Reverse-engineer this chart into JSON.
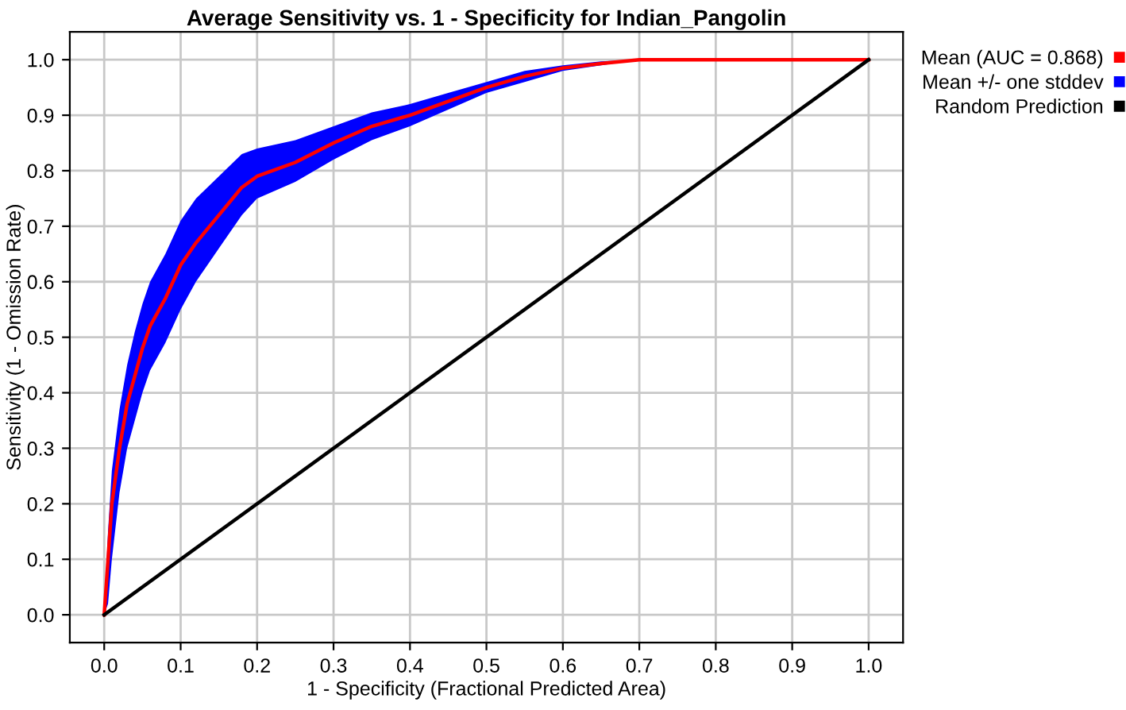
{
  "chart_data": {
    "type": "line",
    "title": "Average Sensitivity vs. 1 - Specificity for Indian_Pangolin",
    "xlabel": "1 - Specificity (Fractional Predicted Area)",
    "ylabel": "Sensitivity (1 - Omission Rate)",
    "xlim": [
      -0.045,
      1.045
    ],
    "ylim": [
      -0.05,
      1.05
    ],
    "xticks": [
      {
        "value": 0,
        "label": "0.0"
      },
      0.1,
      0.2,
      0.3,
      0.4,
      0.5,
      0.6,
      0.7,
      0.8,
      0.9,
      {
        "value": 1,
        "label": "1.0"
      }
    ],
    "yticks": [
      {
        "value": 0,
        "label": "0.0"
      },
      0.1,
      0.2,
      0.3,
      0.4,
      0.5,
      0.6,
      0.7,
      0.8,
      0.9,
      {
        "value": 1,
        "label": "1.0"
      }
    ],
    "grid": true,
    "legend": "top right",
    "marker": "none",
    "line_style": "solid",
    "annotations": [
      "Mean +/- one stddev"
    ],
    "series": [
      {
        "name": "Mean (AUC = 0.868)",
        "color": "#ff0000",
        "x": [
          0,
          0.005,
          0.01,
          0.02,
          0.03,
          0.04,
          0.05,
          0.06,
          0.08,
          0.1,
          0.12,
          0.15,
          0.18,
          0.2,
          0.25,
          0.3,
          0.35,
          0.4,
          0.45,
          0.5,
          0.55,
          0.6,
          0.65,
          0.7,
          0.8,
          1.0
        ],
        "values": [
          0,
          0.1,
          0.2,
          0.3,
          0.38,
          0.43,
          0.48,
          0.52,
          0.57,
          0.63,
          0.67,
          0.72,
          0.77,
          0.79,
          0.815,
          0.85,
          0.88,
          0.9,
          0.925,
          0.95,
          0.97,
          0.985,
          0.993,
          1.0,
          1.0,
          1.0
        ],
        "lower": [
          0,
          0.02,
          0.1,
          0.22,
          0.3,
          0.35,
          0.4,
          0.44,
          0.49,
          0.55,
          0.6,
          0.66,
          0.72,
          0.75,
          0.78,
          0.82,
          0.855,
          0.88,
          0.91,
          0.94,
          0.96,
          0.98,
          0.99,
          1.0,
          1.0,
          1.0
        ],
        "upper": [
          0,
          0.15,
          0.26,
          0.37,
          0.45,
          0.51,
          0.56,
          0.6,
          0.65,
          0.71,
          0.75,
          0.79,
          0.83,
          0.84,
          0.855,
          0.88,
          0.905,
          0.92,
          0.94,
          0.96,
          0.98,
          0.99,
          0.997,
          1.0,
          1.0,
          1.0
        ]
      },
      {
        "name": "Random Prediction",
        "color": "#000000",
        "x": [
          0,
          1
        ],
        "values": [
          0,
          1
        ]
      }
    ]
  }
}
